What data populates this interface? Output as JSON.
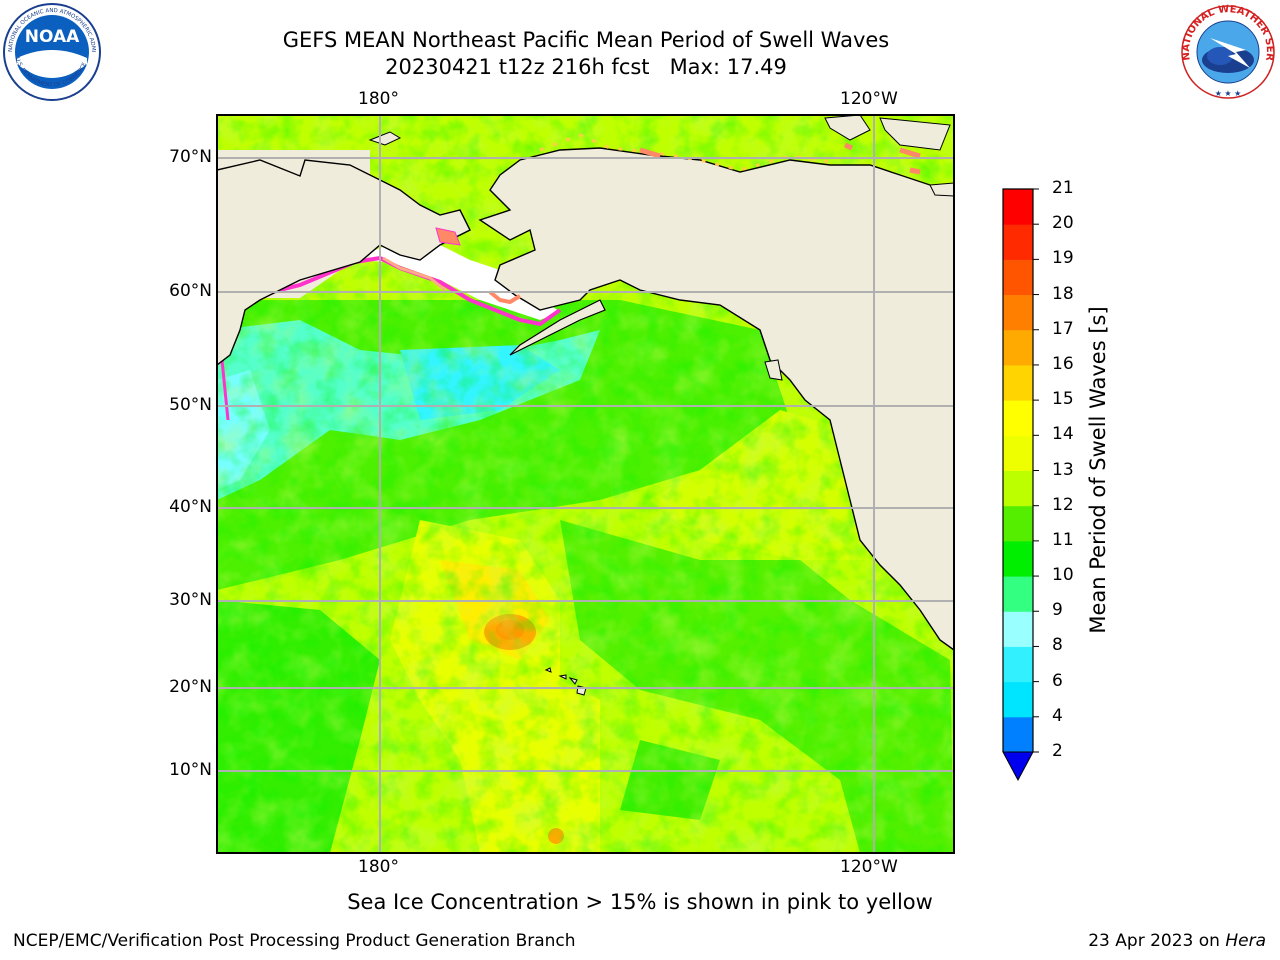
{
  "title": {
    "line1": "GEFS MEAN Northeast Pacific Mean Period of Swell Waves",
    "line2": "20230421 t12z 216h fcst   Max: 17.49"
  },
  "map": {
    "projection": "lat-lon",
    "lon_top_labels": [
      "180°",
      "120°W"
    ],
    "lon_bottom_labels": [
      "180°",
      "120°W"
    ],
    "lat_labels": [
      "70°N",
      "60°N",
      "50°N",
      "40°N",
      "30°N",
      "20°N",
      "10°N"
    ],
    "land_color": "#efecdc",
    "gridline_color": "#b0b0b0"
  },
  "colorbar": {
    "label": "Mean Period of Swell Waves [s]",
    "ticks": [
      "2",
      "4",
      "6",
      "8",
      "9",
      "10",
      "11",
      "12",
      "13",
      "14",
      "15",
      "16",
      "17",
      "18",
      "19",
      "20",
      "21"
    ],
    "colors": [
      "#0055ff",
      "#007fff",
      "#00e5ff",
      "#33f0ff",
      "#99ffff",
      "#33ff80",
      "#00ee00",
      "#55ee00",
      "#bbff00",
      "#eeff00",
      "#ffff00",
      "#ffd400",
      "#ffaa00",
      "#ff8000",
      "#ff5500",
      "#ff2a00",
      "#ff0000"
    ],
    "extend_min_color": "#0000ee"
  },
  "note": "Sea Ice Concentration > 15% is shown in pink to yellow",
  "footer": {
    "credit": "NCEP/EMC/Verification Post Processing Product Generation Branch",
    "date": "23 Apr 2023 on ",
    "host": "Hera"
  },
  "logos": {
    "noaa_text": "NOAA",
    "noaa_ring_text": "NATIONAL OCEANIC AND ATMOSPHERIC ADMINISTRATION",
    "noaa_ring_bottom": "U.S. DEPARTMENT OF COMMERCE",
    "nws_ring_text": "NATIONAL WEATHER SERVICE"
  }
}
